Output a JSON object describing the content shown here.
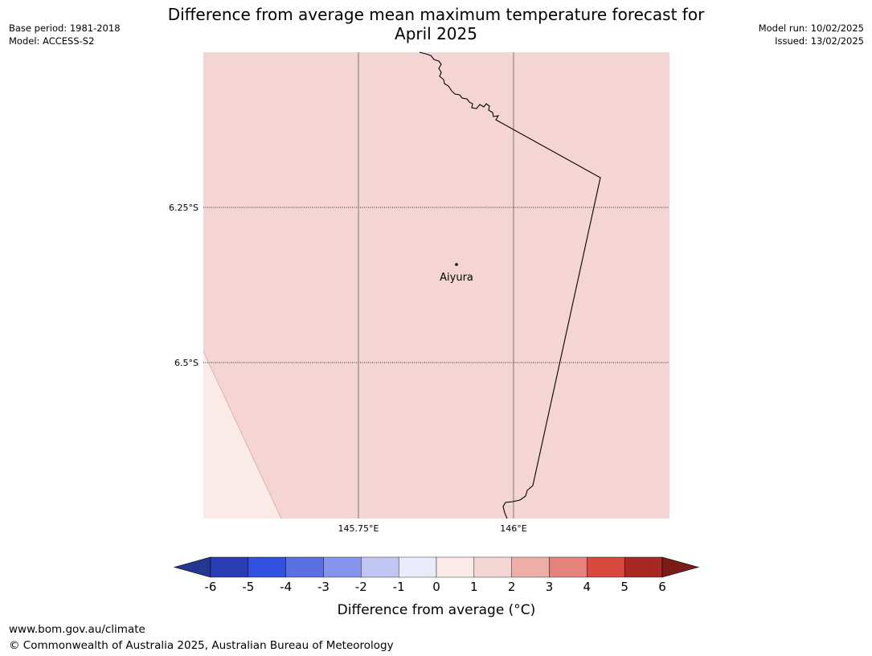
{
  "header": {
    "base_period": "Base period: 1981-2018",
    "model": "Model: ACCESS-S2",
    "model_run": "Model run: 10/02/2025",
    "issued": "Issued: 13/02/2025",
    "title_line1": "Difference from average mean maximum temperature forecast for",
    "title_line2": "April 2025"
  },
  "map": {
    "lat_labels": [
      "6.25°S",
      "6.5°S"
    ],
    "lon_labels": [
      "145.75°E",
      "146°E"
    ],
    "place": {
      "name": "Aiyura"
    },
    "fill_colors": {
      "main": "#f4d5d3",
      "lower_left": "#faeae8"
    }
  },
  "colorbar": {
    "ticks": [
      "-6",
      "-5",
      "-4",
      "-3",
      "-2",
      "-1",
      "0",
      "1",
      "2",
      "3",
      "4",
      "5",
      "6"
    ],
    "label": "Difference from average (°C)",
    "colors": [
      "#233690",
      "#2a3db4",
      "#3150de",
      "#5a70e2",
      "#8594ec",
      "#c0c6f3",
      "#e9ebfb",
      "#fbeae8",
      "#f4d5d3",
      "#edaea8",
      "#e6827c",
      "#d9483f",
      "#a82822",
      "#7a1c18"
    ]
  },
  "footer": {
    "url": "www.bom.gov.au/climate",
    "copyright": "© Commonwealth of Australia 2025, Australian Bureau of Meteorology"
  }
}
